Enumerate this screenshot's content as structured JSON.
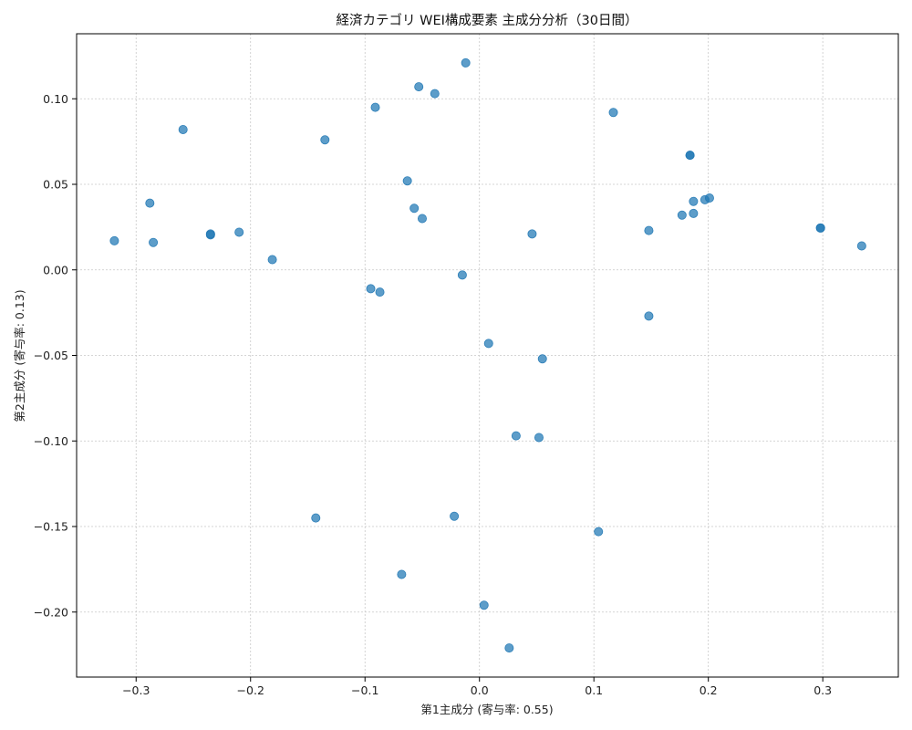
{
  "chart_data": {
    "type": "scatter",
    "title": "経済カテゴリ WEI構成要素 主成分分析（30日間）",
    "xlabel": "第1主成分 (寄与率: 0.55)",
    "ylabel": "第2主成分 (寄与率: 0.13)",
    "xlim": [
      -0.352,
      0.366
    ],
    "ylim": [
      -0.238,
      0.138
    ],
    "xticks": [
      -0.3,
      -0.2,
      -0.1,
      0.0,
      0.1,
      0.2,
      0.3
    ],
    "xtick_labels": [
      "−0.3",
      "−0.2",
      "−0.1",
      "0.0",
      "0.1",
      "0.2",
      "0.3"
    ],
    "yticks": [
      -0.2,
      -0.15,
      -0.1,
      -0.05,
      0.0,
      0.05,
      0.1
    ],
    "ytick_labels": [
      "−0.20",
      "−0.15",
      "−0.10",
      "−0.05",
      "0.00",
      "0.05",
      "0.10"
    ],
    "grid": true,
    "color": "#1f77b4",
    "points": [
      {
        "x": -0.319,
        "y": 0.017
      },
      {
        "x": -0.288,
        "y": 0.039
      },
      {
        "x": -0.285,
        "y": 0.016
      },
      {
        "x": -0.259,
        "y": 0.082
      },
      {
        "x": -0.235,
        "y": 0.021
      },
      {
        "x": -0.235,
        "y": 0.0205
      },
      {
        "x": -0.21,
        "y": 0.022
      },
      {
        "x": -0.181,
        "y": 0.006
      },
      {
        "x": -0.143,
        "y": -0.145
      },
      {
        "x": -0.135,
        "y": 0.076
      },
      {
        "x": -0.095,
        "y": -0.011
      },
      {
        "x": -0.091,
        "y": 0.095
      },
      {
        "x": -0.087,
        "y": -0.013
      },
      {
        "x": -0.068,
        "y": -0.178
      },
      {
        "x": -0.063,
        "y": 0.052
      },
      {
        "x": -0.057,
        "y": 0.036
      },
      {
        "x": -0.053,
        "y": 0.107
      },
      {
        "x": -0.05,
        "y": 0.03
      },
      {
        "x": -0.039,
        "y": 0.103
      },
      {
        "x": -0.022,
        "y": -0.144
      },
      {
        "x": -0.015,
        "y": -0.003
      },
      {
        "x": -0.012,
        "y": 0.121
      },
      {
        "x": 0.004,
        "y": -0.196
      },
      {
        "x": 0.008,
        "y": -0.043
      },
      {
        "x": 0.026,
        "y": -0.221
      },
      {
        "x": 0.032,
        "y": -0.097
      },
      {
        "x": 0.046,
        "y": 0.021
      },
      {
        "x": 0.052,
        "y": -0.098
      },
      {
        "x": 0.055,
        "y": -0.052
      },
      {
        "x": 0.104,
        "y": -0.153
      },
      {
        "x": 0.117,
        "y": 0.092
      },
      {
        "x": 0.148,
        "y": 0.023
      },
      {
        "x": 0.148,
        "y": -0.027
      },
      {
        "x": 0.177,
        "y": 0.032
      },
      {
        "x": 0.184,
        "y": 0.067
      },
      {
        "x": 0.184,
        "y": 0.067
      },
      {
        "x": 0.187,
        "y": 0.04
      },
      {
        "x": 0.187,
        "y": 0.033
      },
      {
        "x": 0.197,
        "y": 0.041
      },
      {
        "x": 0.201,
        "y": 0.042
      },
      {
        "x": 0.298,
        "y": 0.0245
      },
      {
        "x": 0.298,
        "y": 0.0245
      },
      {
        "x": 0.334,
        "y": 0.014
      }
    ]
  }
}
